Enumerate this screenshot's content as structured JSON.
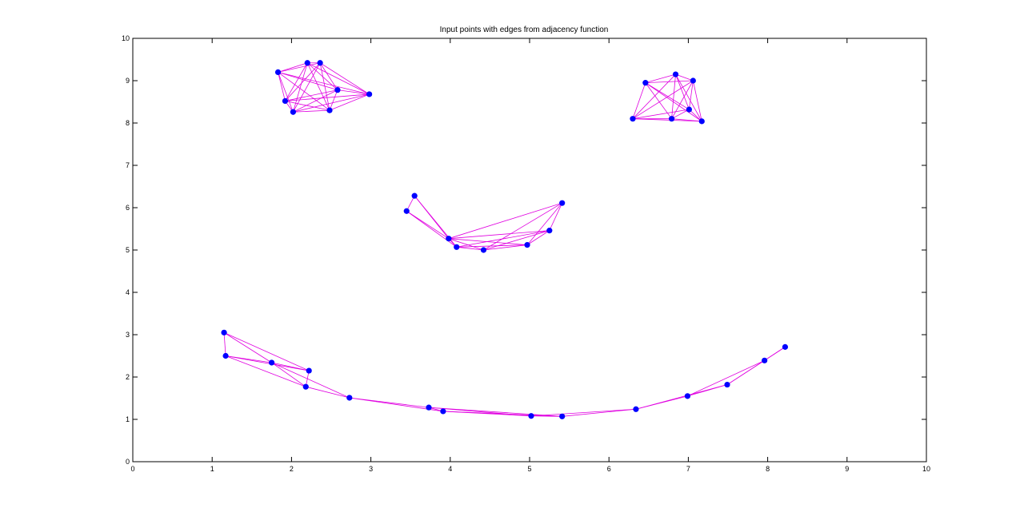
{
  "chart_data": {
    "type": "scatter",
    "title": "Input points with edges from adjacency function",
    "xlabel": "",
    "ylabel": "",
    "xlim": [
      0,
      10
    ],
    "ylim": [
      0,
      10
    ],
    "xticks": [
      "0",
      "1",
      "2",
      "3",
      "4",
      "5",
      "6",
      "7",
      "8",
      "9",
      "10"
    ],
    "yticks": [
      "0",
      "1",
      "2",
      "3",
      "4",
      "5",
      "6",
      "7",
      "8",
      "9",
      "10"
    ],
    "grid": false,
    "point_color": "#0000ff",
    "edge_color": "#e000e0",
    "points": [
      [
        1.83,
        9.2
      ],
      [
        2.2,
        9.42
      ],
      [
        2.36,
        9.42
      ],
      [
        1.92,
        8.52
      ],
      [
        2.02,
        8.26
      ],
      [
        2.48,
        8.3
      ],
      [
        2.58,
        8.78
      ],
      [
        2.98,
        8.68
      ],
      [
        6.46,
        8.95
      ],
      [
        6.84,
        9.15
      ],
      [
        7.06,
        9.0
      ],
      [
        6.3,
        8.1
      ],
      [
        6.79,
        8.1
      ],
      [
        7.01,
        8.32
      ],
      [
        7.17,
        8.04
      ],
      [
        3.45,
        5.92
      ],
      [
        3.55,
        6.28
      ],
      [
        3.98,
        5.27
      ],
      [
        4.08,
        5.07
      ],
      [
        4.42,
        5.0
      ],
      [
        4.97,
        5.12
      ],
      [
        5.25,
        5.46
      ],
      [
        5.41,
        6.11
      ],
      [
        1.15,
        3.05
      ],
      [
        1.17,
        2.5
      ],
      [
        1.75,
        2.34
      ],
      [
        2.22,
        2.15
      ],
      [
        2.18,
        1.77
      ],
      [
        2.73,
        1.51
      ],
      [
        3.73,
        1.28
      ],
      [
        3.91,
        1.19
      ],
      [
        5.02,
        1.08
      ],
      [
        5.41,
        1.07
      ],
      [
        6.34,
        1.24
      ],
      [
        6.99,
        1.55
      ],
      [
        7.49,
        1.82
      ],
      [
        7.96,
        2.39
      ],
      [
        8.22,
        2.71
      ]
    ],
    "edges": [
      [
        0,
        1
      ],
      [
        0,
        2
      ],
      [
        0,
        3
      ],
      [
        0,
        4
      ],
      [
        0,
        5
      ],
      [
        0,
        6
      ],
      [
        0,
        7
      ],
      [
        1,
        2
      ],
      [
        1,
        3
      ],
      [
        1,
        4
      ],
      [
        1,
        5
      ],
      [
        1,
        6
      ],
      [
        1,
        7
      ],
      [
        2,
        3
      ],
      [
        2,
        4
      ],
      [
        2,
        5
      ],
      [
        2,
        6
      ],
      [
        2,
        7
      ],
      [
        3,
        4
      ],
      [
        3,
        5
      ],
      [
        3,
        6
      ],
      [
        3,
        7
      ],
      [
        4,
        5
      ],
      [
        4,
        6
      ],
      [
        4,
        7
      ],
      [
        5,
        6
      ],
      [
        5,
        7
      ],
      [
        6,
        7
      ],
      [
        8,
        9
      ],
      [
        8,
        10
      ],
      [
        8,
        11
      ],
      [
        8,
        12
      ],
      [
        8,
        13
      ],
      [
        8,
        14
      ],
      [
        9,
        10
      ],
      [
        9,
        11
      ],
      [
        9,
        12
      ],
      [
        9,
        13
      ],
      [
        9,
        14
      ],
      [
        10,
        11
      ],
      [
        10,
        12
      ],
      [
        10,
        13
      ],
      [
        10,
        14
      ],
      [
        11,
        12
      ],
      [
        11,
        13
      ],
      [
        11,
        14
      ],
      [
        12,
        13
      ],
      [
        12,
        14
      ],
      [
        13,
        14
      ],
      [
        15,
        16
      ],
      [
        15,
        17
      ],
      [
        15,
        18
      ],
      [
        16,
        17
      ],
      [
        16,
        18
      ],
      [
        17,
        18
      ],
      [
        17,
        19
      ],
      [
        17,
        20
      ],
      [
        17,
        21
      ],
      [
        18,
        19
      ],
      [
        18,
        20
      ],
      [
        18,
        21
      ],
      [
        19,
        20
      ],
      [
        19,
        21
      ],
      [
        20,
        21
      ],
      [
        20,
        22
      ],
      [
        21,
        22
      ],
      [
        17,
        22
      ],
      [
        19,
        22
      ],
      [
        23,
        24
      ],
      [
        23,
        25
      ],
      [
        23,
        26
      ],
      [
        24,
        25
      ],
      [
        24,
        26
      ],
      [
        24,
        27
      ],
      [
        25,
        26
      ],
      [
        25,
        27
      ],
      [
        25,
        28
      ],
      [
        26,
        27
      ],
      [
        27,
        28
      ],
      [
        28,
        29
      ],
      [
        28,
        30
      ],
      [
        29,
        30
      ],
      [
        29,
        31
      ],
      [
        30,
        31
      ],
      [
        30,
        32
      ],
      [
        29,
        32
      ],
      [
        31,
        32
      ],
      [
        31,
        33
      ],
      [
        32,
        33
      ],
      [
        33,
        34
      ],
      [
        33,
        35
      ],
      [
        34,
        35
      ],
      [
        34,
        36
      ],
      [
        35,
        36
      ],
      [
        35,
        37
      ],
      [
        36,
        37
      ]
    ]
  }
}
